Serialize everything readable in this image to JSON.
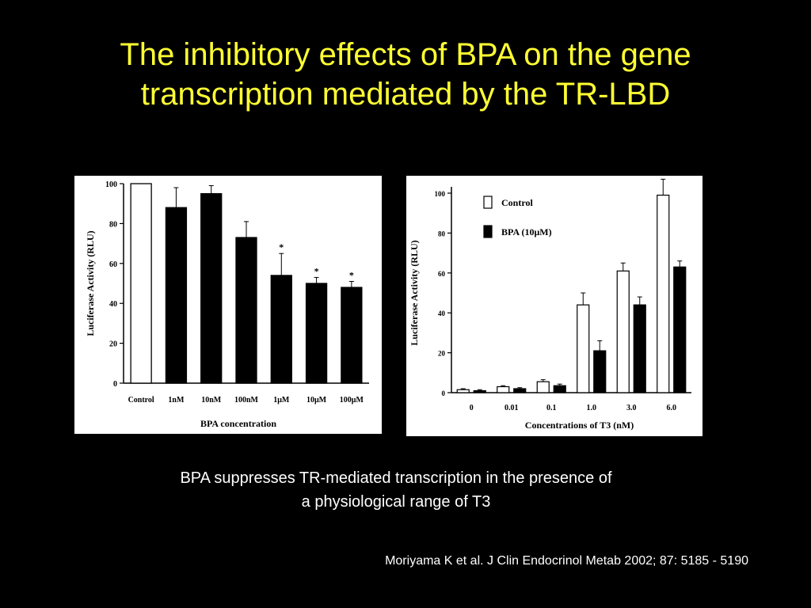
{
  "title": {
    "line1": "The inhibitory effects of BPA on the gene",
    "line2": "transcription mediated by the TR-LBD"
  },
  "caption": {
    "line1": "BPA suppresses TR-mediated transcription in the presence of",
    "line2": "a physiological range of T3"
  },
  "citation": "Moriyama K et al. J Clin Endocrinol Metab 2002; 87: 5185 - 5190",
  "colors": {
    "title": "#ffff33",
    "background": "#000000",
    "text": "#ffffff"
  },
  "chart_data": [
    {
      "type": "bar",
      "categories": [
        "Control",
        "1nM",
        "10nM",
        "100nM",
        "1μM",
        "10μM",
        "100μM"
      ],
      "values": [
        100,
        88,
        95,
        73,
        54,
        50,
        48
      ],
      "errors": [
        0,
        10,
        4,
        8,
        11,
        3,
        3
      ],
      "significant": [
        false,
        false,
        false,
        false,
        true,
        true,
        true
      ],
      "bar_fill": [
        "open",
        "solid",
        "solid",
        "solid",
        "solid",
        "solid",
        "solid"
      ],
      "xlabel": "BPA concentration",
      "ylabel": "Luciferase Activity (RLU)",
      "ylim": [
        0,
        100
      ],
      "yticks": [
        0,
        20,
        40,
        60,
        80,
        100
      ],
      "significance_marker": "*",
      "grid": false
    },
    {
      "type": "bar",
      "categories": [
        "0",
        "0.01",
        "0.1",
        "1.0",
        "3.0",
        "6.0"
      ],
      "series": [
        {
          "name": "Control",
          "fill": "open",
          "values": [
            1.5,
            3,
            5.5,
            44,
            61,
            99
          ],
          "errors": [
            0.5,
            0.5,
            1,
            6,
            4,
            8
          ]
        },
        {
          "name": "BPA (10μM)",
          "fill": "solid",
          "values": [
            1,
            2,
            3.5,
            21,
            44,
            63
          ],
          "errors": [
            0.5,
            0.5,
            0.8,
            5,
            4,
            3
          ]
        }
      ],
      "xlabel": "Concentrations of T3 (nM)",
      "ylabel": "Luciferase Activity (RLU)",
      "ylim": [
        0,
        100
      ],
      "yticks": [
        0,
        20,
        40,
        60,
        80,
        100
      ],
      "legend": "top-left",
      "grid": false
    }
  ]
}
